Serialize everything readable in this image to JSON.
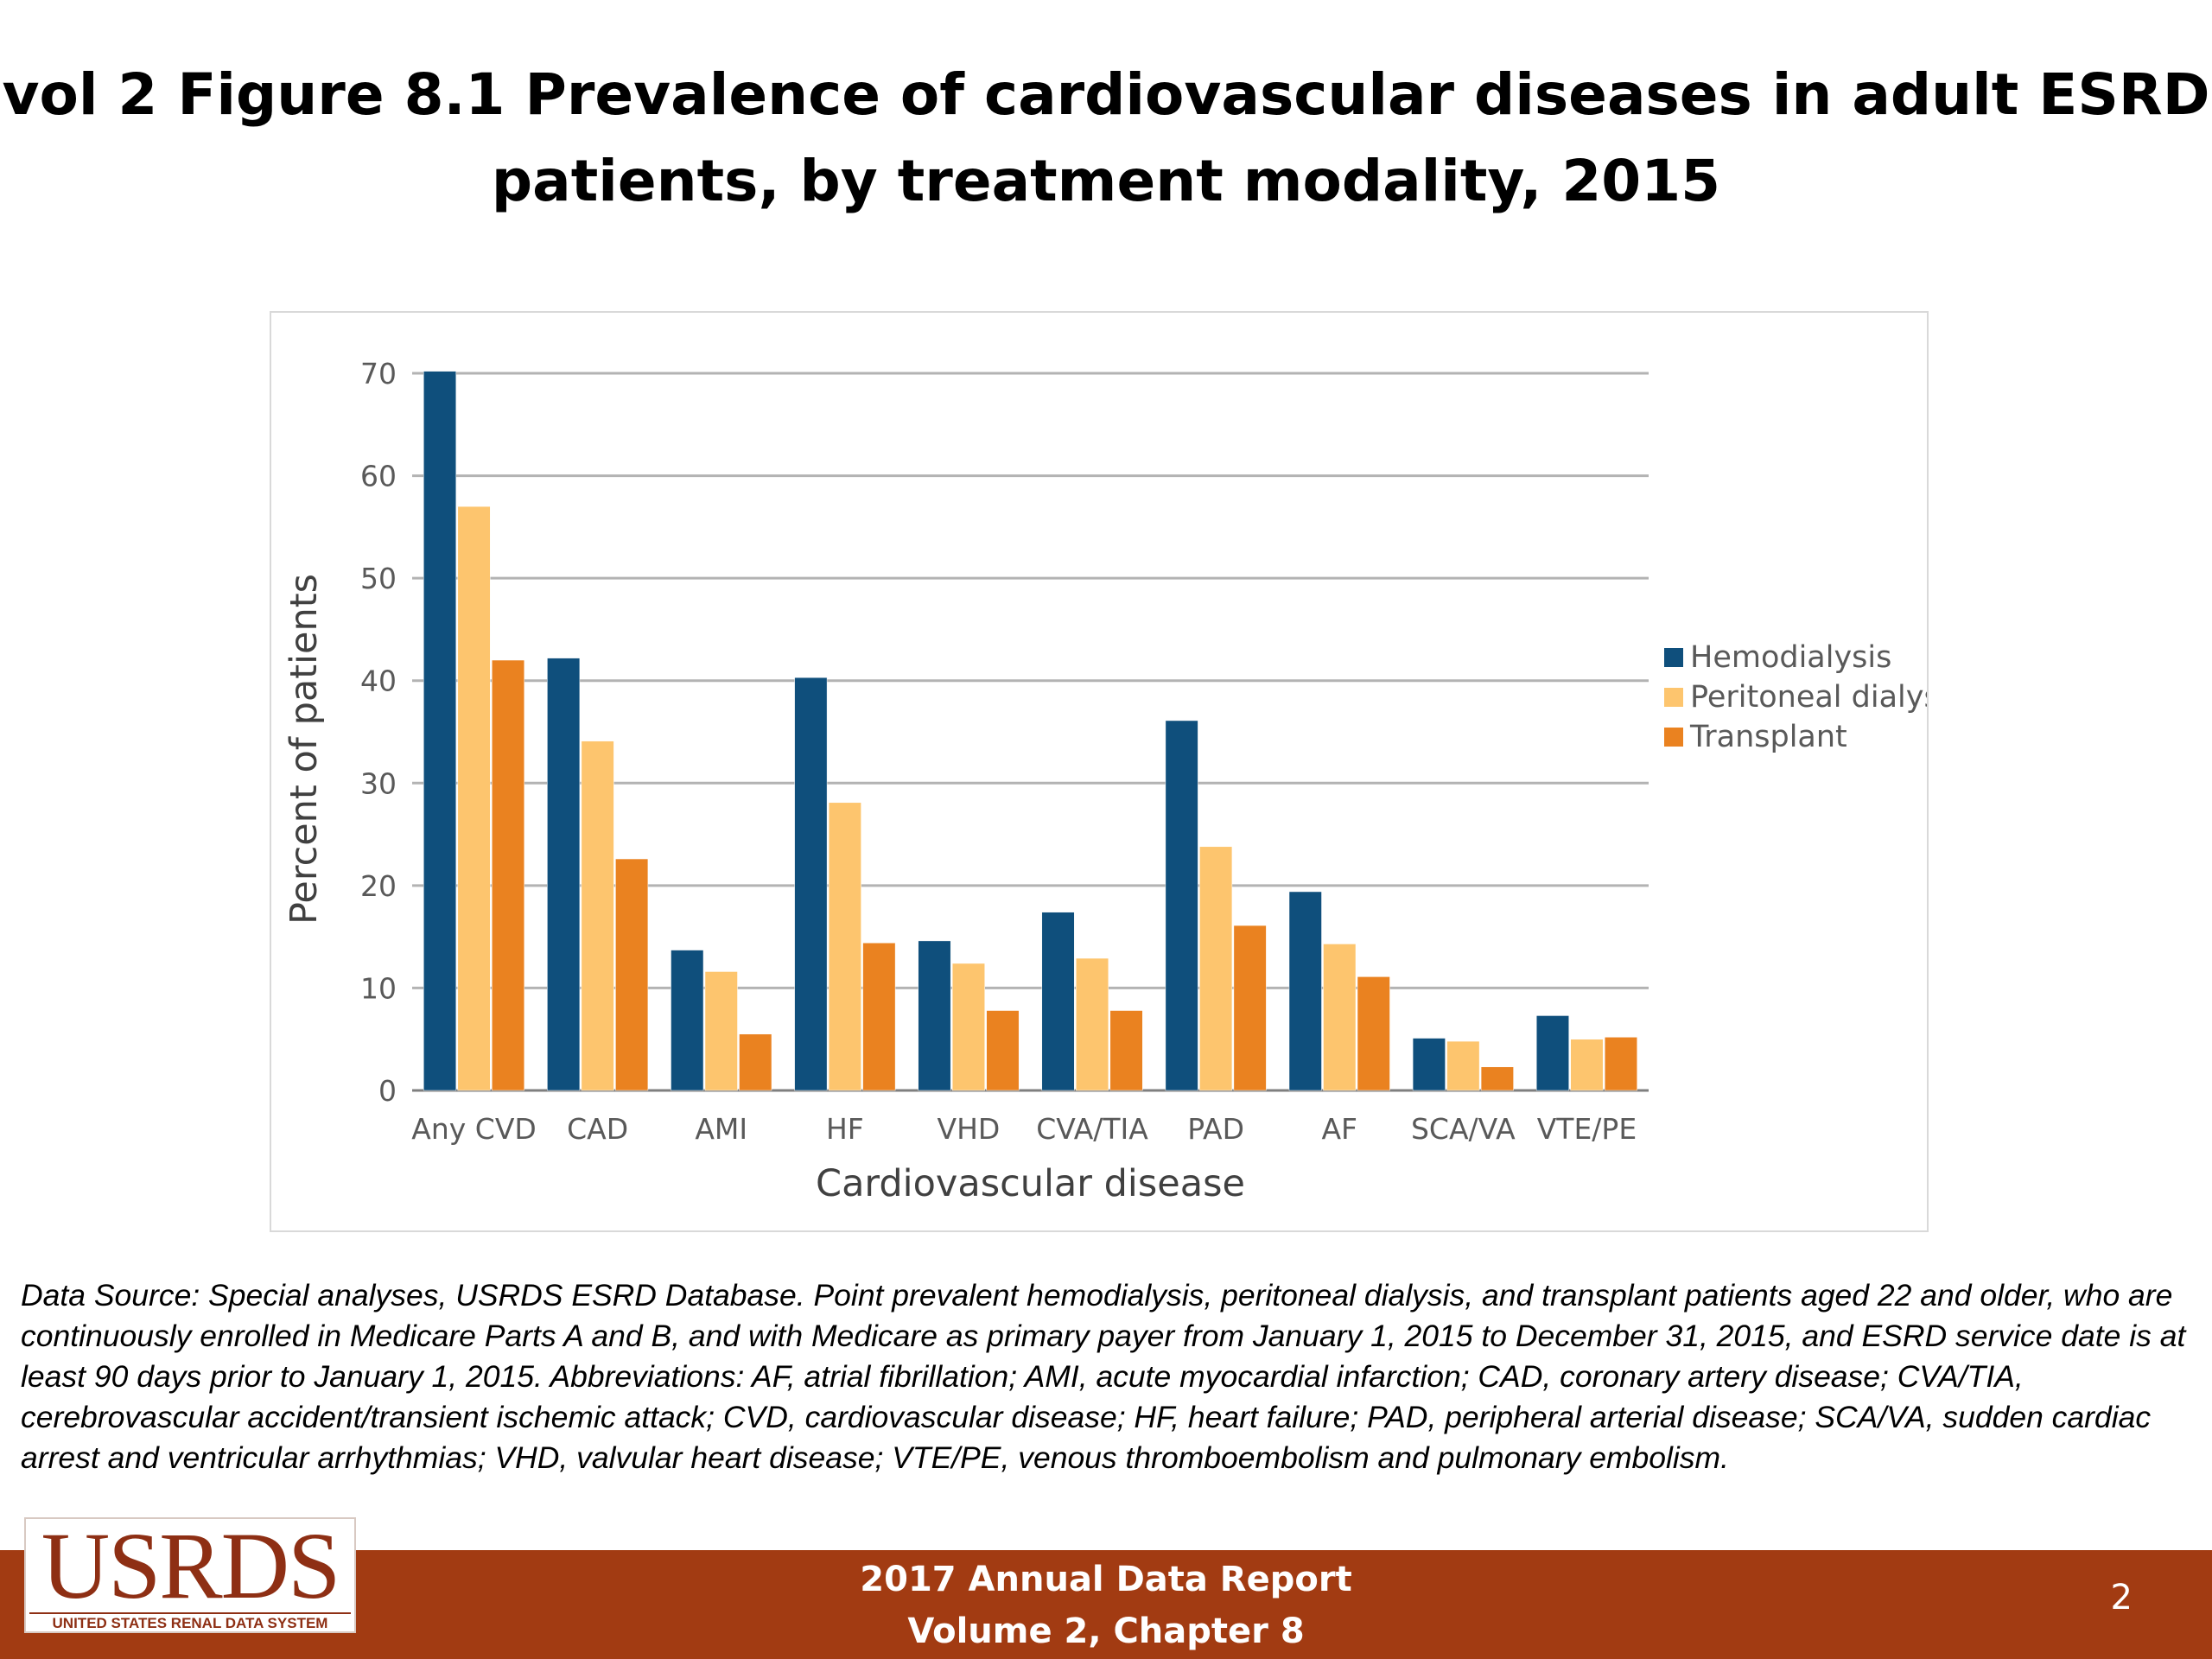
{
  "slide": {
    "title_line1": "vol 2 Figure 8.1 Prevalence of cardiovascular diseases in adult ESRD",
    "title_line2": "patients, by treatment modality, 2015",
    "data_source": "Data Source: Special analyses, USRDS ESRD Database. Point prevalent hemodialysis, peritoneal dialysis, and transplant patients aged 22 and older, who are continuously enrolled in Medicare Parts A and B, and with Medicare as primary payer from January 1, 2015 to December 31, 2015, and ESRD service date is at least 90 days prior to January 1, 2015. Abbreviations: AF, atrial fibrillation; AMI, acute myocardial infarction; CAD, coronary artery disease; CVA/TIA, cerebrovascular accident/transient ischemic attack; CVD, cardiovascular disease; HF, heart failure; PAD, peripheral arterial disease; SCA/VA, sudden cardiac arrest and ventricular arrhythmias; VHD, valvular heart disease; VTE/PE, venous thromboembolism and pulmonary embolism.",
    "footer_line1": "2017 Annual Data Report",
    "footer_line2": "Volume 2, Chapter 8",
    "page_number": "2",
    "logo_text": "USRDS",
    "logo_subtext": "UNITED STATES RENAL DATA SYSTEM",
    "footer_color": "#a23b12"
  },
  "chart_data": {
    "type": "bar",
    "title": "",
    "xlabel": "Cardiovascular disease",
    "ylabel": "Percent of patients",
    "ylim": [
      0,
      70
    ],
    "yticks": [
      0,
      10,
      20,
      30,
      40,
      50,
      60,
      70
    ],
    "grid": true,
    "legend_position": "right",
    "categories": [
      "Any CVD",
      "CAD",
      "AMI",
      "HF",
      "VHD",
      "CVA/TIA",
      "PAD",
      "AF",
      "SCA/VA",
      "VTE/PE"
    ],
    "series": [
      {
        "name": "Hemodialysis",
        "color": "#0f4f7c",
        "values": [
          70.2,
          42.2,
          13.7,
          40.3,
          14.6,
          17.4,
          36.1,
          19.4,
          5.1,
          7.3
        ]
      },
      {
        "name": "Peritoneal dialysis",
        "color": "#fdc56e",
        "values": [
          57.0,
          34.1,
          11.6,
          28.1,
          12.4,
          12.9,
          23.8,
          14.3,
          4.8,
          5.0
        ]
      },
      {
        "name": "Transplant",
        "color": "#ea8220",
        "values": [
          42.0,
          22.6,
          5.5,
          14.4,
          7.8,
          7.8,
          16.1,
          11.1,
          2.3,
          5.2
        ]
      }
    ]
  }
}
